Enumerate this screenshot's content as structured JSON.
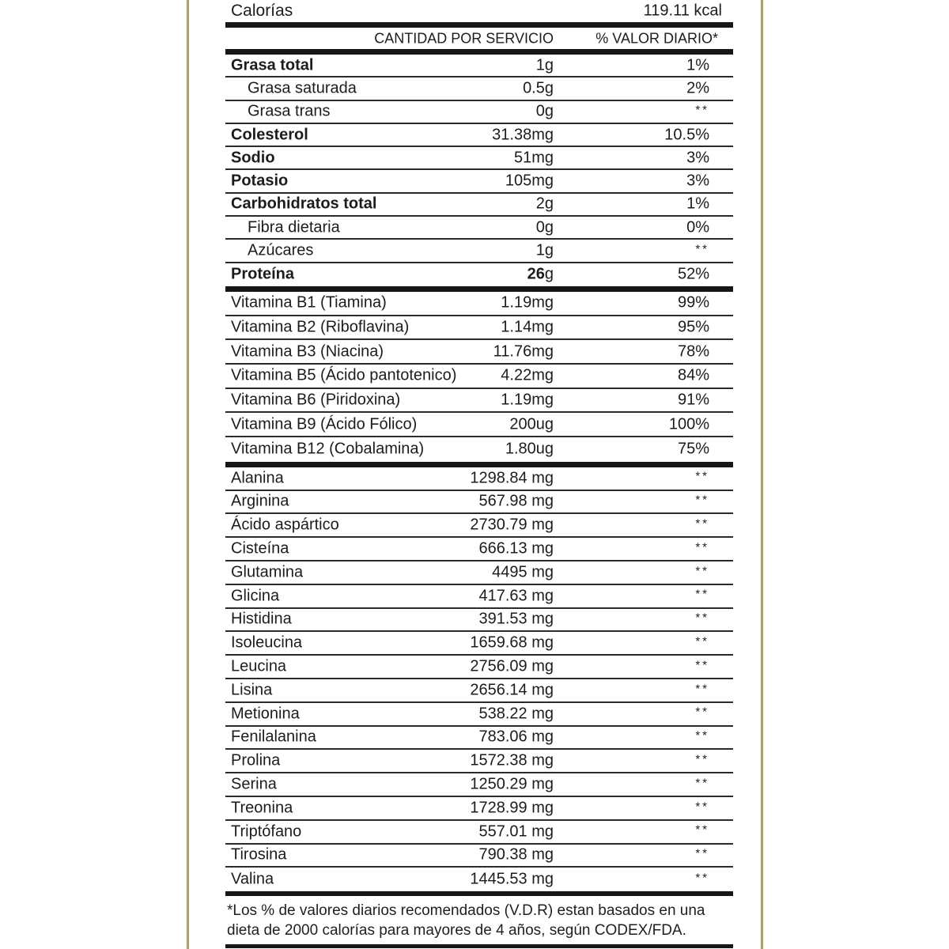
{
  "label": {
    "border_color": "#a7975b",
    "text_color": "#1c1c1c",
    "calories": {
      "label": "Calorías",
      "value": "119.11 kcal"
    },
    "header": {
      "amount_col": "CANTIDAD POR SERVICIO",
      "dv_col": "% VALOR DIARIO*"
    },
    "main_rows": [
      {
        "name": "Grasa total",
        "amount": "1g",
        "dv": "1%",
        "bold": true,
        "indent": false
      },
      {
        "name": "Grasa saturada",
        "amount": "0.5g",
        "dv": "2%",
        "bold": false,
        "indent": true
      },
      {
        "name": "Grasa trans",
        "amount": "0g",
        "dv": "**",
        "bold": false,
        "indent": true
      },
      {
        "name": "Colesterol",
        "amount": "31.38mg",
        "dv": "10.5%",
        "bold": true,
        "indent": false
      },
      {
        "name": "Sodio",
        "amount": "51mg",
        "dv": "3%",
        "bold": true,
        "indent": false
      },
      {
        "name": "Potasio",
        "amount": "105mg",
        "dv": "3%",
        "bold": true,
        "indent": false
      },
      {
        "name": "Carbohidratos total",
        "amount": "2g",
        "dv": "1%",
        "bold": true,
        "indent": false
      },
      {
        "name": "Fibra dietaria",
        "amount": "0g",
        "dv": "0%",
        "bold": false,
        "indent": true
      },
      {
        "name": "Azúcares",
        "amount": "1g",
        "dv": "**",
        "bold": false,
        "indent": true
      },
      {
        "name": "Proteína",
        "amount_bold": "26",
        "amount": "g",
        "dv": "52%",
        "bold": true,
        "indent": false
      }
    ],
    "vitamin_rows": [
      {
        "name": "Vitamina B1 (Tiamina)",
        "amount": "1.19mg",
        "dv": "99%"
      },
      {
        "name": "Vitamina B2 (Riboflavina)",
        "amount": "1.14mg",
        "dv": "95%"
      },
      {
        "name": "Vitamina B3 (Niacina)",
        "amount": "11.76mg",
        "dv": "78%"
      },
      {
        "name": "Vitamina B5 (Ácido pantotenico)",
        "amount": "4.22mg",
        "dv": "84%"
      },
      {
        "name": "Vitamina B6 (Piridoxina)",
        "amount": "1.19mg",
        "dv": "91%"
      },
      {
        "name": "Vitamina B9 (Ácido Fólico)",
        "amount": "200ug",
        "dv": "100%"
      },
      {
        "name": "Vitamina B12 (Cobalamina)",
        "amount": "1.80ug",
        "dv": "75%"
      }
    ],
    "amino_rows": [
      {
        "name": "Alanina",
        "amount": "1298.84 mg",
        "dv": "**"
      },
      {
        "name": "Arginina",
        "amount": "567.98 mg",
        "dv": "**"
      },
      {
        "name": "Ácido aspártico",
        "amount": "2730.79 mg",
        "dv": "**"
      },
      {
        "name": "Cisteína",
        "amount": "666.13 mg",
        "dv": "**"
      },
      {
        "name": "Glutamina",
        "amount": "4495 mg",
        "dv": "**"
      },
      {
        "name": "Glicina",
        "amount": "417.63 mg",
        "dv": "**"
      },
      {
        "name": "Histidina",
        "amount": "391.53 mg",
        "dv": "**"
      },
      {
        "name": "Isoleucina",
        "amount": "1659.68 mg",
        "dv": "**"
      },
      {
        "name": "Leucina",
        "amount": "2756.09 mg",
        "dv": "**"
      },
      {
        "name": "Lisina",
        "amount": "2656.14 mg",
        "dv": "**"
      },
      {
        "name": "Metionina",
        "amount": "538.22 mg",
        "dv": "**"
      },
      {
        "name": "Fenilalanina",
        "amount": "783.06 mg",
        "dv": "**"
      },
      {
        "name": "Prolina",
        "amount": "1572.38 mg",
        "dv": "**"
      },
      {
        "name": "Serina",
        "amount": "1250.29 mg",
        "dv": "**"
      },
      {
        "name": "Treonina",
        "amount": "1728.99 mg",
        "dv": "**"
      },
      {
        "name": "Triptófano",
        "amount": "557.01 mg",
        "dv": "**"
      },
      {
        "name": "Tirosina",
        "amount": "790.38 mg",
        "dv": "**"
      },
      {
        "name": "Valina",
        "amount": "1445.53 mg",
        "dv": "**"
      }
    ],
    "footnote": "*Los % de valores diarios recomendados (V.D.R) estan basados en una dieta de 2000 calorías para mayores de 4 años, según CODEX/FDA."
  }
}
